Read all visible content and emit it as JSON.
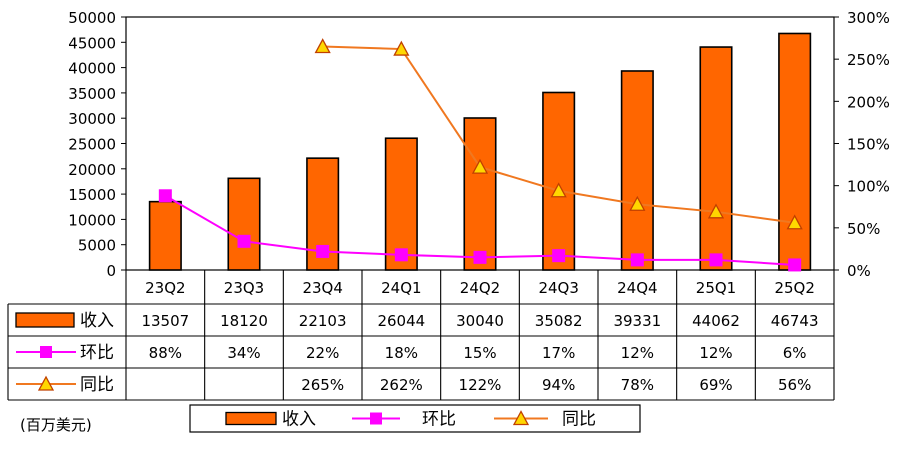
{
  "chart_data": {
    "type": "bar",
    "categories": [
      "23Q2",
      "23Q3",
      "23Q4",
      "24Q1",
      "24Q2",
      "24Q3",
      "24Q4",
      "25Q1",
      "25Q2"
    ],
    "series": [
      {
        "name": "收入",
        "type": "bar",
        "axis": "left",
        "values": [
          13507,
          18120,
          22103,
          26044,
          30040,
          35082,
          39331,
          44062,
          46743
        ],
        "labels": [
          "13507",
          "18120",
          "22103",
          "26044",
          "30040",
          "35082",
          "39331",
          "44062",
          "46743"
        ],
        "color": "#FF6600"
      },
      {
        "name": "环比",
        "type": "line",
        "axis": "right",
        "values": [
          88,
          34,
          22,
          18,
          15,
          17,
          12,
          12,
          6
        ],
        "labels": [
          "88%",
          "34%",
          "22%",
          "18%",
          "15%",
          "17%",
          "12%",
          "12%",
          "6%"
        ],
        "color": "#FF00FF",
        "marker": "square"
      },
      {
        "name": "同比",
        "type": "line",
        "axis": "right",
        "values": [
          null,
          null,
          265,
          262,
          122,
          94,
          78,
          69,
          56
        ],
        "labels": [
          "",
          "",
          "265%",
          "262%",
          "122%",
          "94%",
          "78%",
          "69%",
          "56%"
        ],
        "color": "#F07820",
        "marker": "triangle"
      }
    ],
    "y_left": {
      "min": 0,
      "max": 50000,
      "step": 5000,
      "ticks": [
        "0",
        "5000",
        "10000",
        "15000",
        "20000",
        "25000",
        "30000",
        "35000",
        "40000",
        "45000",
        "50000"
      ]
    },
    "y_right": {
      "min": 0,
      "max": 300,
      "step": 50,
      "ticks": [
        "0%",
        "50%",
        "100%",
        "150%",
        "200%",
        "250%",
        "300%"
      ]
    },
    "grid": false,
    "legend": {
      "position": "bottom",
      "entries": [
        "收入",
        "环比",
        "同比"
      ]
    },
    "unit_label": "(百万美元)"
  }
}
